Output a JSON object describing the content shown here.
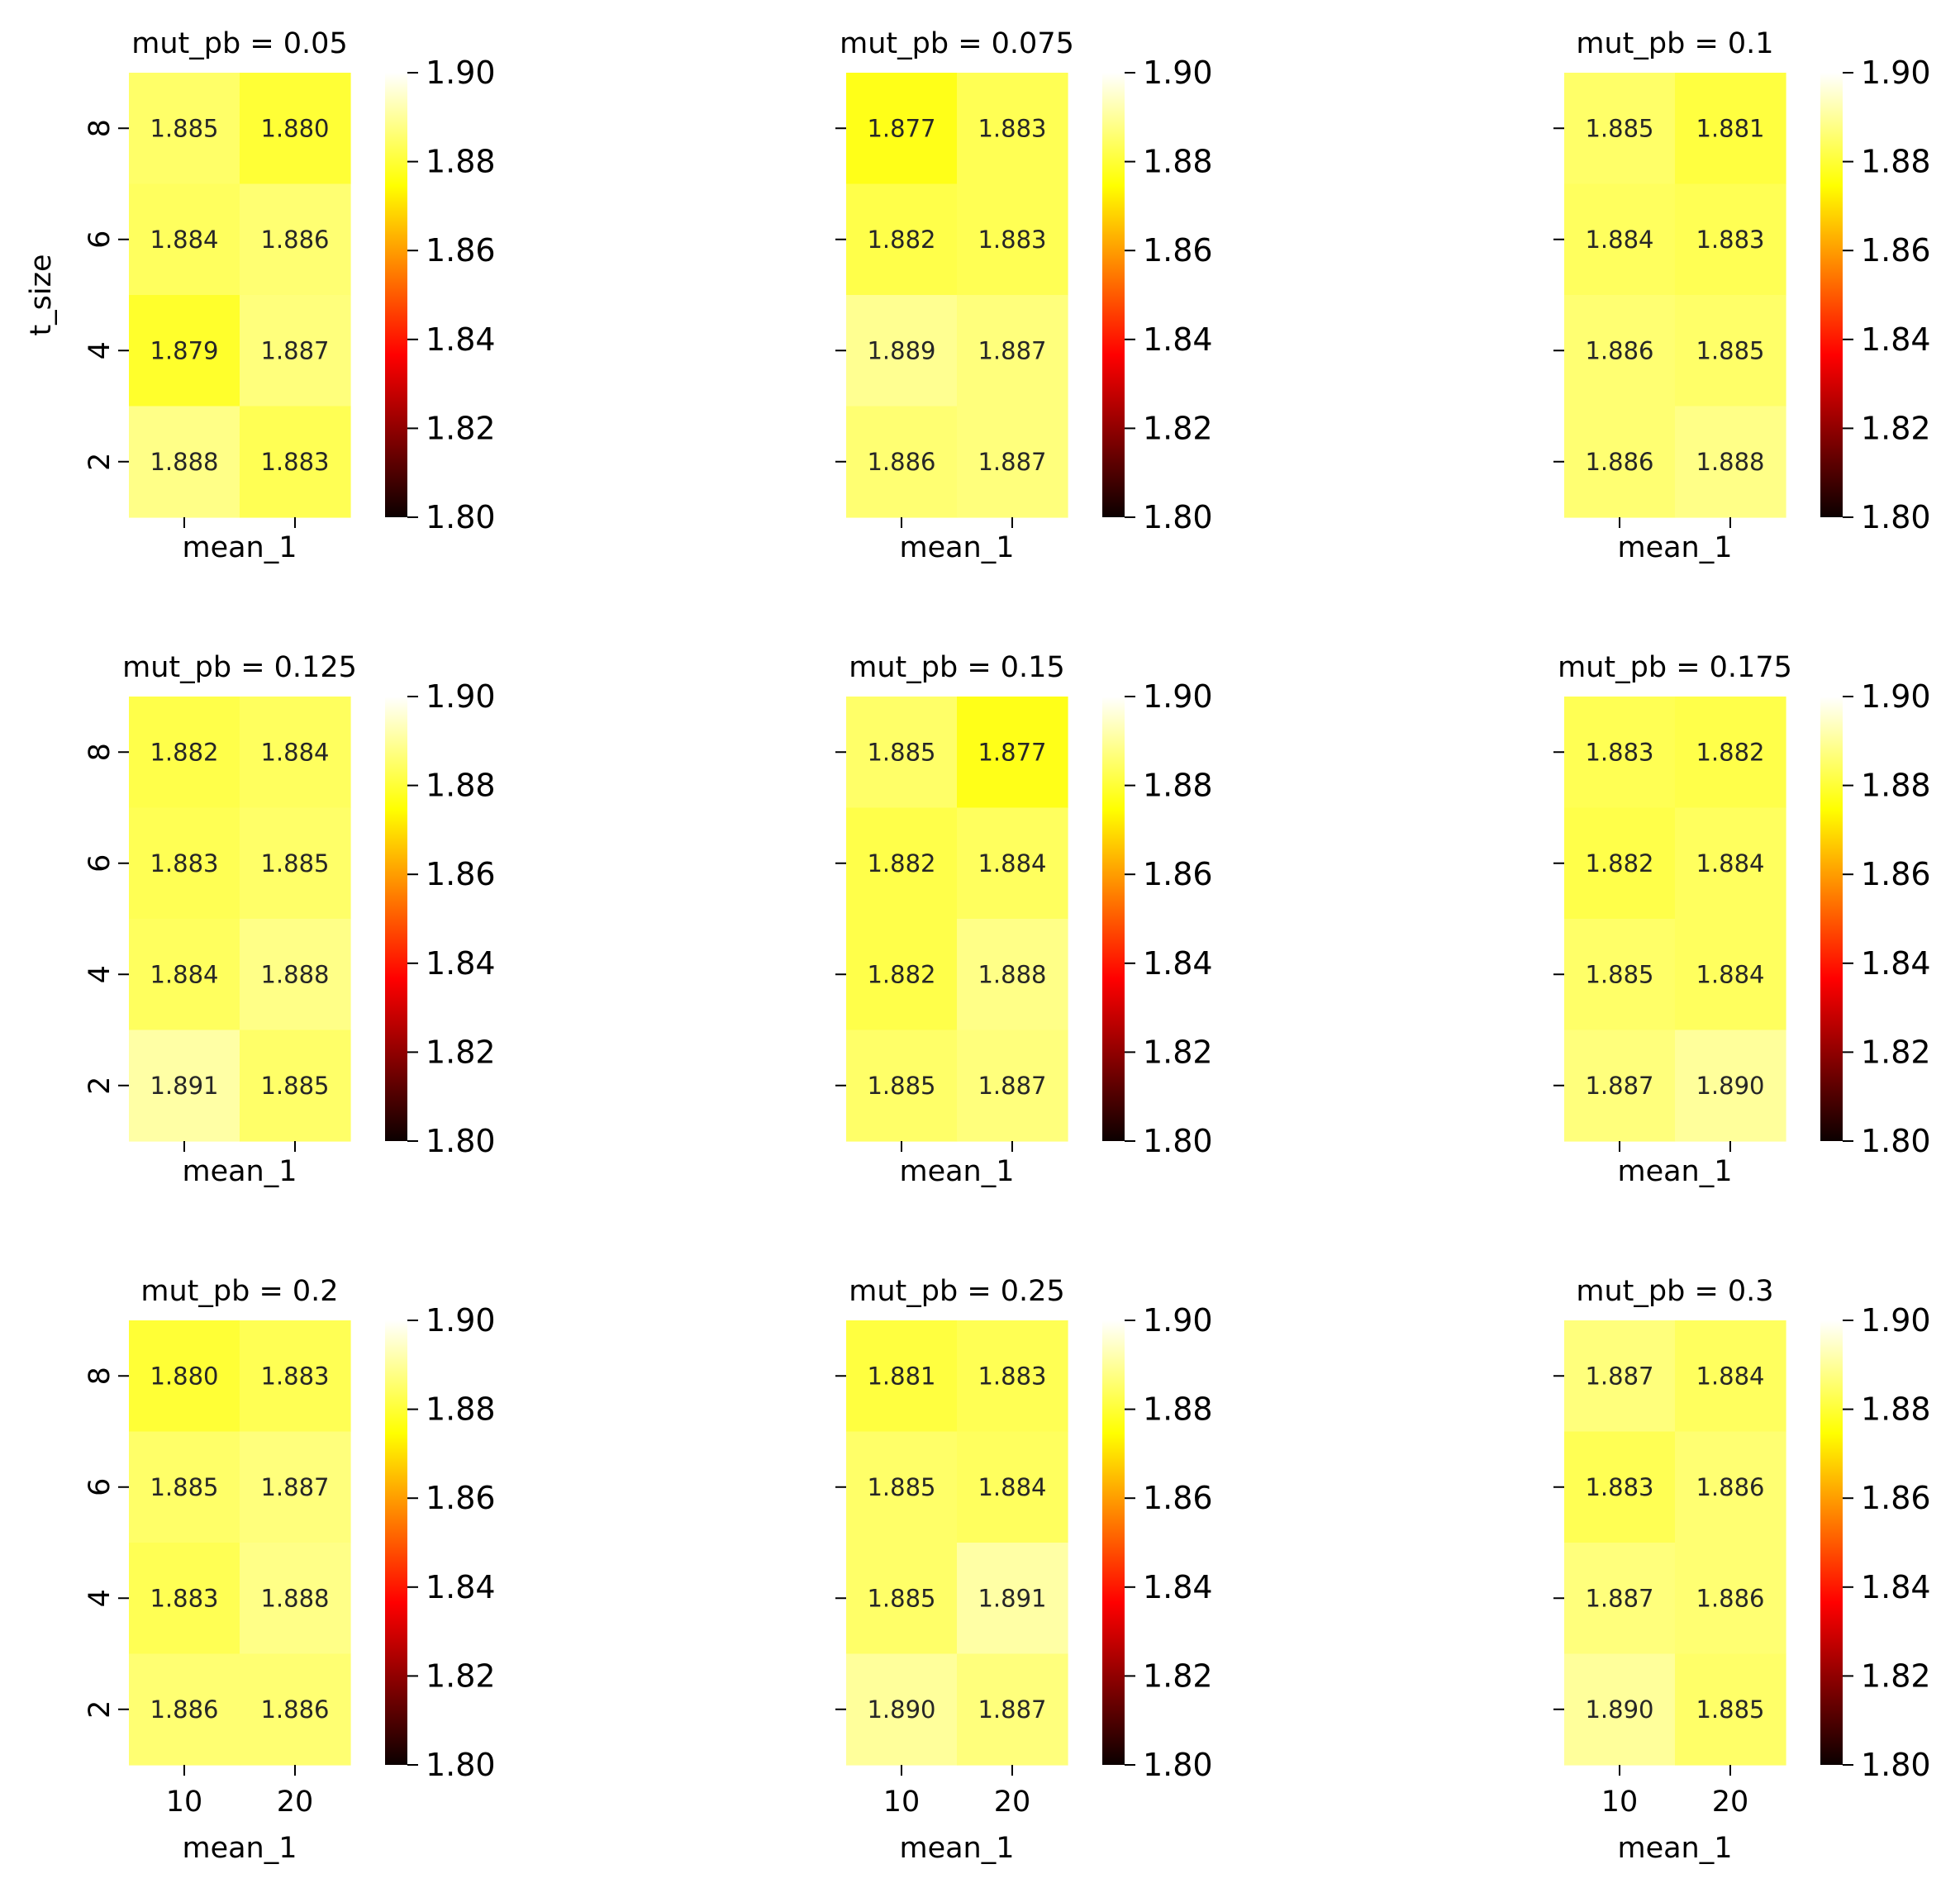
{
  "chart_data": {
    "type": "heatmap",
    "colormap": "hot",
    "color_range": [
      1.8,
      1.9
    ],
    "colorbar_ticks": [
      "1.80",
      "1.82",
      "1.84",
      "1.86",
      "1.88",
      "1.90"
    ],
    "x_categories": [
      "10",
      "20"
    ],
    "y_categories": [
      "8",
      "6",
      "4",
      "2"
    ],
    "xlabel": "mean_1",
    "ylabel": "t_size",
    "panels": [
      {
        "title": "mut_pb = 0.05",
        "values": [
          [
            1.885,
            1.88
          ],
          [
            1.884,
            1.886
          ],
          [
            1.879,
            1.887
          ],
          [
            1.888,
            1.883
          ]
        ]
      },
      {
        "title": "mut_pb = 0.075",
        "values": [
          [
            1.877,
            1.883
          ],
          [
            1.882,
            1.883
          ],
          [
            1.889,
            1.887
          ],
          [
            1.886,
            1.887
          ]
        ]
      },
      {
        "title": "mut_pb = 0.1",
        "values": [
          [
            1.885,
            1.881
          ],
          [
            1.884,
            1.883
          ],
          [
            1.886,
            1.885
          ],
          [
            1.886,
            1.888
          ]
        ]
      },
      {
        "title": "mut_pb = 0.125",
        "values": [
          [
            1.882,
            1.884
          ],
          [
            1.883,
            1.885
          ],
          [
            1.884,
            1.888
          ],
          [
            1.891,
            1.885
          ]
        ]
      },
      {
        "title": "mut_pb = 0.15",
        "values": [
          [
            1.885,
            1.877
          ],
          [
            1.882,
            1.884
          ],
          [
            1.882,
            1.888
          ],
          [
            1.885,
            1.887
          ]
        ]
      },
      {
        "title": "mut_pb = 0.175",
        "values": [
          [
            1.883,
            1.882
          ],
          [
            1.882,
            1.884
          ],
          [
            1.885,
            1.884
          ],
          [
            1.887,
            1.89
          ]
        ]
      },
      {
        "title": "mut_pb = 0.2",
        "values": [
          [
            1.88,
            1.883
          ],
          [
            1.885,
            1.887
          ],
          [
            1.883,
            1.888
          ],
          [
            1.886,
            1.886
          ]
        ]
      },
      {
        "title": "mut_pb = 0.25",
        "values": [
          [
            1.881,
            1.883
          ],
          [
            1.885,
            1.884
          ],
          [
            1.885,
            1.891
          ],
          [
            1.89,
            1.887
          ]
        ]
      },
      {
        "title": "mut_pb = 0.3",
        "values": [
          [
            1.887,
            1.884
          ],
          [
            1.883,
            1.886
          ],
          [
            1.887,
            1.886
          ],
          [
            1.89,
            1.885
          ]
        ]
      }
    ]
  }
}
